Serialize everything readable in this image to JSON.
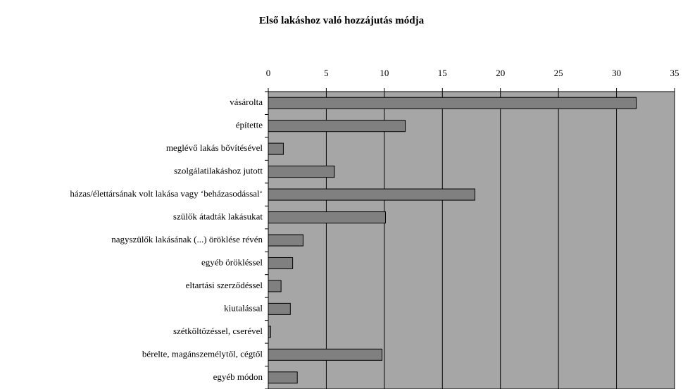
{
  "chart_data": {
    "type": "bar",
    "orientation": "horizontal",
    "title": "Első lakáshoz való hozzájutás módja",
    "categories": [
      "vásárolta",
      "építette",
      "meglévő lakás bővítésével",
      "szolgálatilakáshoz jutott",
      "házas/élettársának volt lakása vagy ‘beházasodással‘",
      "szülők átadták lakásukat",
      "nagyszülők lakásának (...) öröklése révén",
      "egyéb örökléssel",
      "eltartási szerződéssel",
      "kiutalással",
      "szétköltözéssel, cserével",
      "bérelte, magánszemélytől, cégtől",
      "egyéb módon"
    ],
    "values": [
      31.7,
      11.8,
      1.3,
      5.7,
      17.8,
      10.1,
      3.0,
      2.1,
      1.1,
      1.9,
      0.2,
      9.8,
      2.5
    ],
    "color": "#808080",
    "plot_background": "#a6a6a6",
    "xlim": [
      0,
      35
    ],
    "xticks": [
      0,
      5,
      10,
      15,
      20,
      25,
      30,
      35
    ],
    "grid": true
  }
}
